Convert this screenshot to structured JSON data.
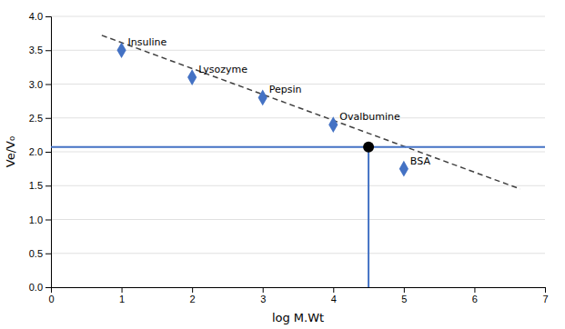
{
  "chart_data": {
    "type": "scatter",
    "xlabel": "log M.Wt",
    "ylabel": "Ve/V₀",
    "xlim": [
      0,
      7
    ],
    "ylim": [
      0,
      4
    ],
    "xticks": [
      0,
      1,
      2,
      3,
      4,
      5,
      6,
      7
    ],
    "yticks": [
      {
        "value": 0,
        "label": "0.0"
      },
      {
        "value": 0.5,
        "label": "0.5"
      },
      {
        "value": 1,
        "label": "1.0"
      },
      {
        "value": 1.5,
        "label": "1.5"
      },
      {
        "value": 2,
        "label": "2.0"
      },
      {
        "value": 2.5,
        "label": "2.5"
      },
      {
        "value": 3,
        "label": "3.0"
      },
      {
        "value": 3.5,
        "label": "3.5"
      },
      {
        "value": 4,
        "label": "4.0"
      }
    ],
    "grid": "y",
    "series": [
      {
        "type": "scatter",
        "x": [
          1,
          2,
          3,
          4,
          5
        ],
        "values": [
          3.5,
          3.1,
          2.8,
          2.4,
          1.75
        ],
        "labels": [
          "Insuline",
          "Lysozyme",
          "Pepsin",
          "Ovalbumine",
          "BSA"
        ],
        "color": "#4472C4",
        "marker": "diamond"
      },
      {
        "type": "line",
        "x": [
          0.72,
          6.65
        ],
        "values": [
          3.72,
          1.45
        ],
        "color": "#404040",
        "line_style": "dashed"
      }
    ],
    "hline": {
      "y": 2.07,
      "color": "#4472C4"
    },
    "vline": {
      "x": 4.5,
      "color": "#4472C4"
    },
    "intersection": {
      "x": 4.5,
      "y": 2.07,
      "color": "black"
    }
  }
}
